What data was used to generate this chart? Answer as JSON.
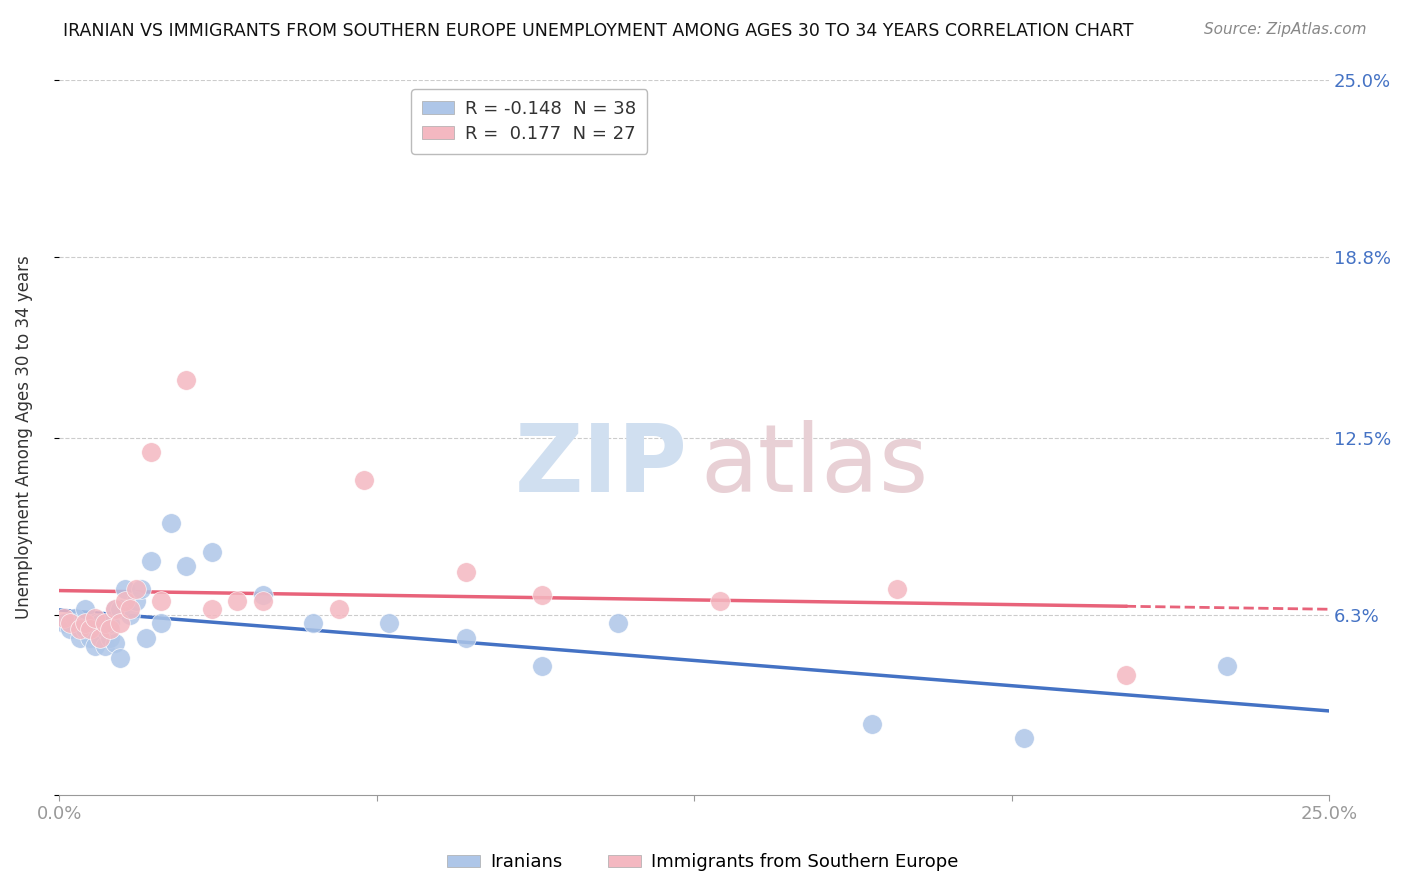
{
  "title": "IRANIAN VS IMMIGRANTS FROM SOUTHERN EUROPE UNEMPLOYMENT AMONG AGES 30 TO 34 YEARS CORRELATION CHART",
  "source": "Source: ZipAtlas.com",
  "ylabel": "Unemployment Among Ages 30 to 34 years",
  "xmin": 0.0,
  "xmax": 0.25,
  "ymin": 0.0,
  "ymax": 0.25,
  "ytick_values": [
    0.0,
    0.063,
    0.125,
    0.188,
    0.25
  ],
  "ytick_right_labels": [
    "6.3%",
    "12.5%",
    "18.8%",
    "25.0%"
  ],
  "iranians_x": [
    0.001,
    0.002,
    0.003,
    0.004,
    0.005,
    0.005,
    0.006,
    0.007,
    0.007,
    0.008,
    0.008,
    0.009,
    0.009,
    0.01,
    0.01,
    0.011,
    0.011,
    0.012,
    0.012,
    0.013,
    0.014,
    0.015,
    0.016,
    0.017,
    0.018,
    0.02,
    0.022,
    0.025,
    0.03,
    0.04,
    0.05,
    0.065,
    0.08,
    0.095,
    0.11,
    0.16,
    0.19,
    0.23
  ],
  "iranians_y": [
    0.06,
    0.058,
    0.062,
    0.055,
    0.058,
    0.065,
    0.055,
    0.052,
    0.06,
    0.055,
    0.06,
    0.052,
    0.058,
    0.055,
    0.06,
    0.053,
    0.065,
    0.048,
    0.065,
    0.072,
    0.063,
    0.068,
    0.072,
    0.055,
    0.082,
    0.06,
    0.095,
    0.08,
    0.085,
    0.07,
    0.06,
    0.06,
    0.055,
    0.045,
    0.06,
    0.025,
    0.02,
    0.045
  ],
  "southern_europe_x": [
    0.001,
    0.002,
    0.004,
    0.005,
    0.006,
    0.007,
    0.008,
    0.009,
    0.01,
    0.011,
    0.012,
    0.013,
    0.014,
    0.015,
    0.018,
    0.02,
    0.025,
    0.03,
    0.035,
    0.04,
    0.055,
    0.06,
    0.08,
    0.095,
    0.13,
    0.165,
    0.21
  ],
  "southern_europe_y": [
    0.062,
    0.06,
    0.058,
    0.06,
    0.058,
    0.062,
    0.055,
    0.06,
    0.058,
    0.065,
    0.06,
    0.068,
    0.065,
    0.072,
    0.12,
    0.068,
    0.145,
    0.065,
    0.068,
    0.068,
    0.065,
    0.11,
    0.078,
    0.07,
    0.068,
    0.072,
    0.042
  ],
  "iranian_color": "#aec6e8",
  "southern_europe_color": "#f4b8c1",
  "iranian_line_color": "#4472c4",
  "southern_europe_line_color": "#e8637a",
  "background_color": "#ffffff",
  "grid_color": "#cccccc",
  "watermark_zip_color": "#d0dff0",
  "watermark_atlas_color": "#e8d0d5"
}
